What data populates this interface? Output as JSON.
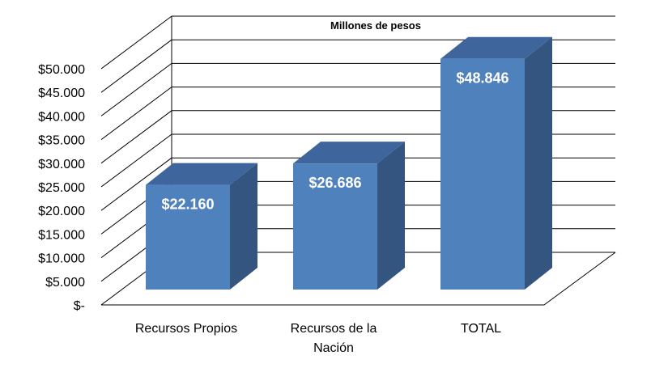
{
  "chart_data": {
    "type": "bar",
    "title": "Millones de pesos",
    "categories": [
      "Recursos Propios",
      "Recursos de la Nación",
      "TOTAL"
    ],
    "category_lines": [
      [
        "Recursos Propios"
      ],
      [
        "Recursos de la",
        "Nación"
      ],
      [
        "TOTAL"
      ]
    ],
    "values": [
      22160,
      26686,
      48846
    ],
    "data_labels": [
      "$22.160",
      "$26.686",
      "$48.846"
    ],
    "ylim": [
      0,
      50000
    ],
    "y_ticks": [
      0,
      5000,
      10000,
      15000,
      20000,
      25000,
      30000,
      35000,
      40000,
      45000,
      50000
    ],
    "y_tick_labels": [
      "$-",
      "$5.000",
      "$10.000",
      "$15.000",
      "$20.000",
      "$25.000",
      "$30.000",
      "$35.000",
      "$40.000",
      "$45.000",
      "$50.000"
    ],
    "grid": true,
    "style": "3d-column",
    "colors": {
      "bar_front": "#4F81BD",
      "bar_top": "#3E669C",
      "bar_side": "#34557F",
      "data_label": "#FFFFFF",
      "grid": "#000000",
      "text": "#000000"
    }
  }
}
